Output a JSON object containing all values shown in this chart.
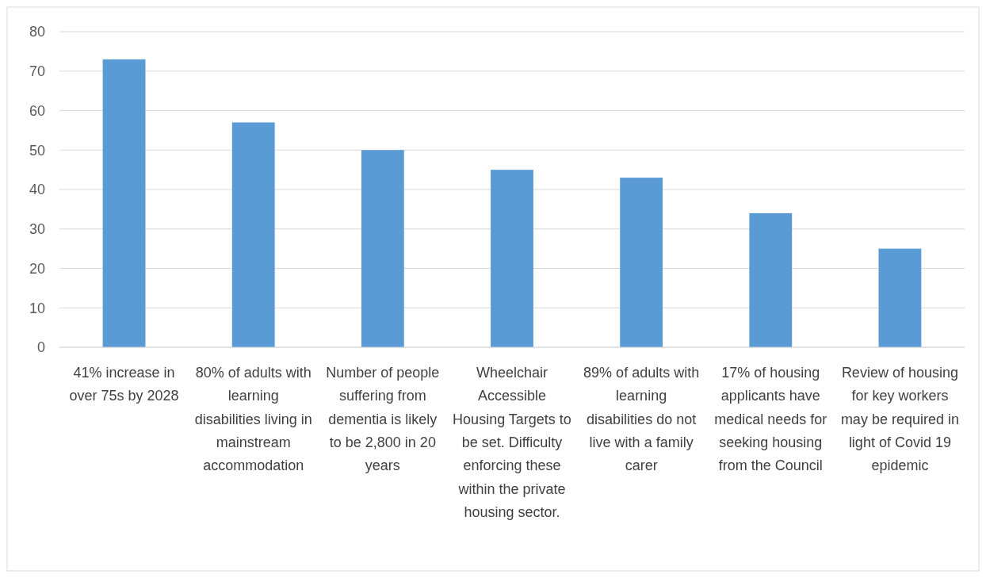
{
  "chart_data": {
    "type": "bar",
    "categories": [
      "41% increase in over 75s by 2028",
      "80% of adults with learning disabilities living in mainstream accommodation",
      "Number of people suffering from dementia is likely to be 2,800 in 20 years",
      "Wheelchair Accessible Housing Targets to be set. Difficulty enforcing these within the private housing sector.",
      "89% of adults with learning disabilities do not live with a family carer",
      "17% of housing applicants have medical needs for seeking housing from the Council",
      "Review of housing for key workers may be required in light of Covid 19 epidemic"
    ],
    "values": [
      73,
      57,
      50,
      45,
      43,
      34,
      25
    ],
    "color": "#5b9bd5",
    "ylim": [
      0,
      80
    ],
    "yticks": [
      0,
      10,
      20,
      30,
      40,
      50,
      60,
      70,
      80
    ],
    "grid": "y"
  }
}
